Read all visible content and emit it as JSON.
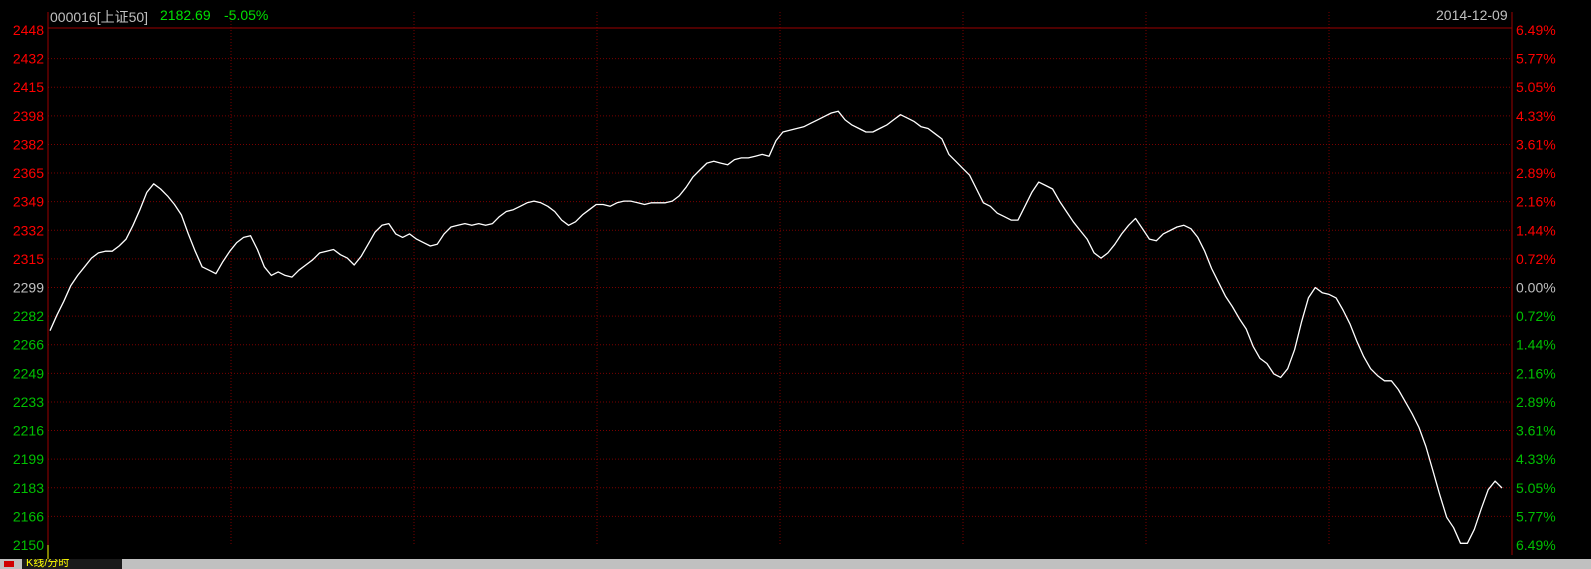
{
  "header": {
    "code_name": "000016[上证50]",
    "price": "2182.69",
    "change_pct": "-5.05%",
    "date": "2014-12-09"
  },
  "colors": {
    "background": "#000000",
    "up": "#ff0000",
    "down": "#00c000",
    "neutral": "#c0c0c0",
    "line": "#ffffff",
    "grid": "#7a0000",
    "frame": "#9c0000",
    "header_code": "#c0c0c0",
    "header_values": "#00e000",
    "date": "#c0c0c0"
  },
  "bottom_tab": {
    "label": "K线/分时",
    "color": "#ffff00"
  },
  "chart_data": {
    "type": "line",
    "title": "000016[上证50]",
    "baseline": 2299,
    "ylim": [
      2150,
      2448
    ],
    "left_ticks": [
      "2448",
      "2432",
      "2415",
      "2398",
      "2382",
      "2365",
      "2349",
      "2332",
      "2315",
      "2299",
      "2282",
      "2266",
      "2249",
      "2233",
      "2216",
      "2199",
      "2183",
      "2166",
      "2150"
    ],
    "right_ticks": [
      "6.49%",
      "5.77%",
      "5.05%",
      "4.33%",
      "3.61%",
      "2.89%",
      "2.16%",
      "1.44%",
      "0.72%",
      "0.00%",
      "0.72%",
      "1.44%",
      "2.16%",
      "2.89%",
      "3.61%",
      "4.33%",
      "5.05%",
      "5.77%",
      "6.49%"
    ],
    "grid": true,
    "x_sessions": 240,
    "series": [
      {
        "points": [
          [
            0,
            2274
          ],
          [
            2,
            2283
          ],
          [
            4,
            2291
          ],
          [
            6,
            2300
          ],
          [
            8,
            2306
          ],
          [
            10,
            2311
          ],
          [
            12,
            2316
          ],
          [
            14,
            2319
          ],
          [
            16,
            2320
          ],
          [
            18,
            2320
          ],
          [
            20,
            2323
          ],
          [
            22,
            2327
          ],
          [
            24,
            2335
          ],
          [
            26,
            2344
          ],
          [
            28,
            2354
          ],
          [
            30,
            2359
          ],
          [
            32,
            2356
          ],
          [
            34,
            2352
          ],
          [
            36,
            2347
          ],
          [
            38,
            2341
          ],
          [
            40,
            2330
          ],
          [
            42,
            2320
          ],
          [
            44,
            2311
          ],
          [
            46,
            2309
          ],
          [
            48,
            2307
          ],
          [
            50,
            2314
          ],
          [
            52,
            2320
          ],
          [
            54,
            2325
          ],
          [
            56,
            2328
          ],
          [
            58,
            2329
          ],
          [
            60,
            2321
          ],
          [
            62,
            2311
          ],
          [
            64,
            2306
          ],
          [
            66,
            2308
          ],
          [
            68,
            2306
          ],
          [
            70,
            2305
          ],
          [
            72,
            2309
          ],
          [
            74,
            2312
          ],
          [
            76,
            2315
          ],
          [
            78,
            2319
          ],
          [
            80,
            2320
          ],
          [
            82,
            2321
          ],
          [
            84,
            2318
          ],
          [
            86,
            2316
          ],
          [
            88,
            2312
          ],
          [
            90,
            2317
          ],
          [
            92,
            2324
          ],
          [
            94,
            2331
          ],
          [
            96,
            2335
          ],
          [
            98,
            2336
          ],
          [
            100,
            2330
          ],
          [
            102,
            2328
          ],
          [
            104,
            2330
          ],
          [
            106,
            2327
          ],
          [
            108,
            2325
          ],
          [
            110,
            2323
          ],
          [
            112,
            2324
          ],
          [
            114,
            2330
          ],
          [
            116,
            2334
          ],
          [
            118,
            2335
          ],
          [
            120,
            2336
          ],
          [
            122,
            2335
          ],
          [
            124,
            2336
          ],
          [
            126,
            2335
          ],
          [
            128,
            2336
          ],
          [
            130,
            2340
          ],
          [
            132,
            2343
          ],
          [
            134,
            2344
          ],
          [
            136,
            2346
          ],
          [
            138,
            2348
          ],
          [
            140,
            2349
          ],
          [
            142,
            2348
          ],
          [
            144,
            2346
          ],
          [
            146,
            2343
          ],
          [
            148,
            2338
          ],
          [
            150,
            2335
          ],
          [
            152,
            2337
          ],
          [
            154,
            2341
          ],
          [
            156,
            2344
          ],
          [
            158,
            2347
          ],
          [
            160,
            2347
          ],
          [
            162,
            2346
          ],
          [
            164,
            2348
          ],
          [
            166,
            2349
          ],
          [
            168,
            2349
          ],
          [
            170,
            2348
          ],
          [
            172,
            2347
          ],
          [
            174,
            2348
          ],
          [
            176,
            2348
          ],
          [
            178,
            2348
          ],
          [
            180,
            2349
          ],
          [
            182,
            2352
          ],
          [
            184,
            2357
          ],
          [
            186,
            2363
          ],
          [
            188,
            2367
          ],
          [
            190,
            2371
          ],
          [
            192,
            2372
          ],
          [
            194,
            2371
          ],
          [
            196,
            2370
          ],
          [
            198,
            2373
          ],
          [
            200,
            2374
          ],
          [
            202,
            2374
          ],
          [
            204,
            2375
          ],
          [
            206,
            2376
          ],
          [
            208,
            2375
          ],
          [
            210,
            2384
          ],
          [
            212,
            2389
          ],
          [
            214,
            2390
          ],
          [
            216,
            2391
          ],
          [
            218,
            2392
          ],
          [
            220,
            2394
          ],
          [
            222,
            2396
          ],
          [
            224,
            2398
          ],
          [
            226,
            2400
          ],
          [
            228,
            2401
          ],
          [
            230,
            2396
          ],
          [
            232,
            2393
          ],
          [
            234,
            2391
          ],
          [
            236,
            2389
          ],
          [
            238,
            2389
          ],
          [
            240,
            2391
          ],
          [
            242,
            2393
          ],
          [
            244,
            2396
          ],
          [
            246,
            2399
          ],
          [
            248,
            2397
          ],
          [
            250,
            2395
          ],
          [
            252,
            2392
          ],
          [
            254,
            2391
          ],
          [
            256,
            2388
          ],
          [
            258,
            2385
          ],
          [
            260,
            2376
          ],
          [
            262,
            2372
          ],
          [
            264,
            2368
          ],
          [
            266,
            2364
          ],
          [
            268,
            2356
          ],
          [
            270,
            2348
          ],
          [
            272,
            2346
          ],
          [
            274,
            2342
          ],
          [
            276,
            2340
          ],
          [
            278,
            2338
          ],
          [
            280,
            2338
          ],
          [
            282,
            2346
          ],
          [
            284,
            2354
          ],
          [
            286,
            2360
          ],
          [
            288,
            2358
          ],
          [
            290,
            2356
          ],
          [
            292,
            2349
          ],
          [
            294,
            2343
          ],
          [
            296,
            2337
          ],
          [
            298,
            2332
          ],
          [
            300,
            2327
          ],
          [
            302,
            2319
          ],
          [
            304,
            2316
          ],
          [
            306,
            2319
          ],
          [
            308,
            2324
          ],
          [
            310,
            2330
          ],
          [
            312,
            2335
          ],
          [
            314,
            2339
          ],
          [
            316,
            2333
          ],
          [
            318,
            2327
          ],
          [
            320,
            2326
          ],
          [
            322,
            2330
          ],
          [
            324,
            2332
          ],
          [
            326,
            2334
          ],
          [
            328,
            2335
          ],
          [
            330,
            2333
          ],
          [
            332,
            2328
          ],
          [
            334,
            2320
          ],
          [
            336,
            2310
          ],
          [
            338,
            2302
          ],
          [
            340,
            2294
          ],
          [
            342,
            2288
          ],
          [
            344,
            2281
          ],
          [
            346,
            2275
          ],
          [
            348,
            2265
          ],
          [
            350,
            2258
          ],
          [
            352,
            2255
          ],
          [
            354,
            2249
          ],
          [
            356,
            2247
          ],
          [
            358,
            2252
          ],
          [
            360,
            2263
          ],
          [
            362,
            2279
          ],
          [
            364,
            2293
          ],
          [
            366,
            2299
          ],
          [
            368,
            2296
          ],
          [
            370,
            2295
          ],
          [
            372,
            2293
          ],
          [
            374,
            2286
          ],
          [
            376,
            2278
          ],
          [
            378,
            2268
          ],
          [
            380,
            2259
          ],
          [
            382,
            2252
          ],
          [
            384,
            2248
          ],
          [
            386,
            2245
          ],
          [
            388,
            2245
          ],
          [
            390,
            2240
          ],
          [
            392,
            2233
          ],
          [
            394,
            2226
          ],
          [
            396,
            2218
          ],
          [
            398,
            2207
          ],
          [
            400,
            2193
          ],
          [
            402,
            2179
          ],
          [
            404,
            2166
          ],
          [
            406,
            2160
          ],
          [
            408,
            2151
          ],
          [
            410,
            2151
          ],
          [
            412,
            2159
          ],
          [
            414,
            2171
          ],
          [
            416,
            2182
          ],
          [
            418,
            2187
          ],
          [
            420,
            2183
          ]
        ]
      }
    ]
  }
}
